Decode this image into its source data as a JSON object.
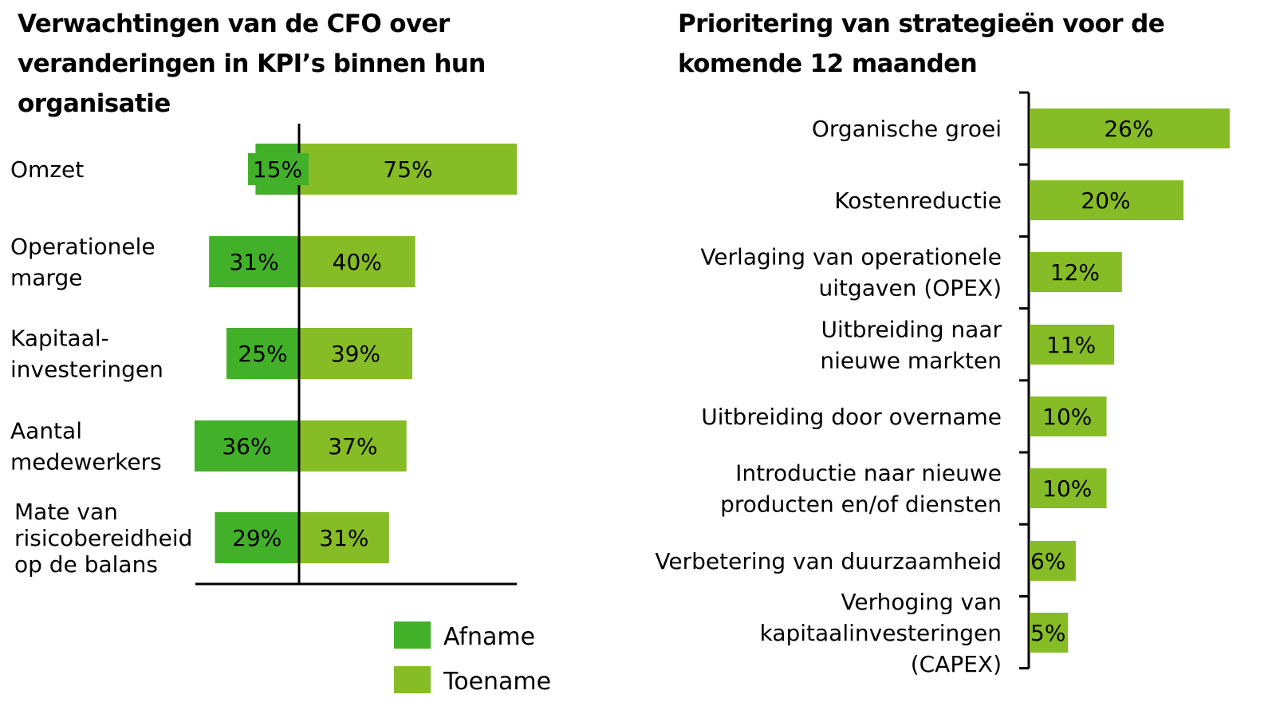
{
  "chart_data": [
    {
      "type": "bar",
      "orientation": "horizontal-diverging",
      "title": "Verwachtingen van de CFO over veranderingen in KPI’s binnen hun organisatie",
      "categories": [
        [
          "Omzet"
        ],
        [
          "Operationele",
          "marge"
        ],
        [
          "Kapitaal-",
          "investeringen"
        ],
        [
          "Aantal",
          "medewerkers"
        ],
        [
          "Mate van",
          "risicobereidheid",
          "op de balans"
        ]
      ],
      "series": [
        {
          "name": "Afname",
          "color": "#43b02a",
          "values": [
            15,
            31,
            25,
            36,
            29
          ],
          "labels": [
            "15%",
            "31%",
            "25%",
            "36%",
            "29%"
          ]
        },
        {
          "name": "Toename",
          "color": "#86bc25",
          "values": [
            75,
            40,
            39,
            37,
            31
          ],
          "labels": [
            "75%",
            "40%",
            "39%",
            "37%",
            "31%"
          ]
        }
      ],
      "legend": {
        "position": "bottom-right",
        "entries": [
          "Afname",
          "Toename"
        ]
      },
      "xlabel": "",
      "ylabel": "",
      "grid": false
    },
    {
      "type": "bar",
      "orientation": "horizontal",
      "title": "Prioritering van strategieën voor de komende 12 maanden",
      "categories": [
        [
          "Organische groei"
        ],
        [
          "Kostenreductie"
        ],
        [
          "Verlaging van operationele",
          "uitgaven (OPEX)"
        ],
        [
          "Uitbreiding naar",
          "nieuwe markten"
        ],
        [
          "Uitbreiding door overname"
        ],
        [
          "Introductie naar nieuwe",
          "producten en/of diensten"
        ],
        [
          "Verbetering van duurzaamheid"
        ],
        [
          "Verhoging van",
          "kapitaalinvesteringen",
          "(CAPEX)"
        ]
      ],
      "values": [
        26,
        20,
        12,
        11,
        10,
        10,
        6,
        5
      ],
      "labels": [
        "26%",
        "20%",
        "12%",
        "11%",
        "10%",
        "10%",
        "6%",
        "5%"
      ],
      "color": "#86bc25",
      "xlabel": "",
      "ylabel": "",
      "grid": false
    }
  ]
}
